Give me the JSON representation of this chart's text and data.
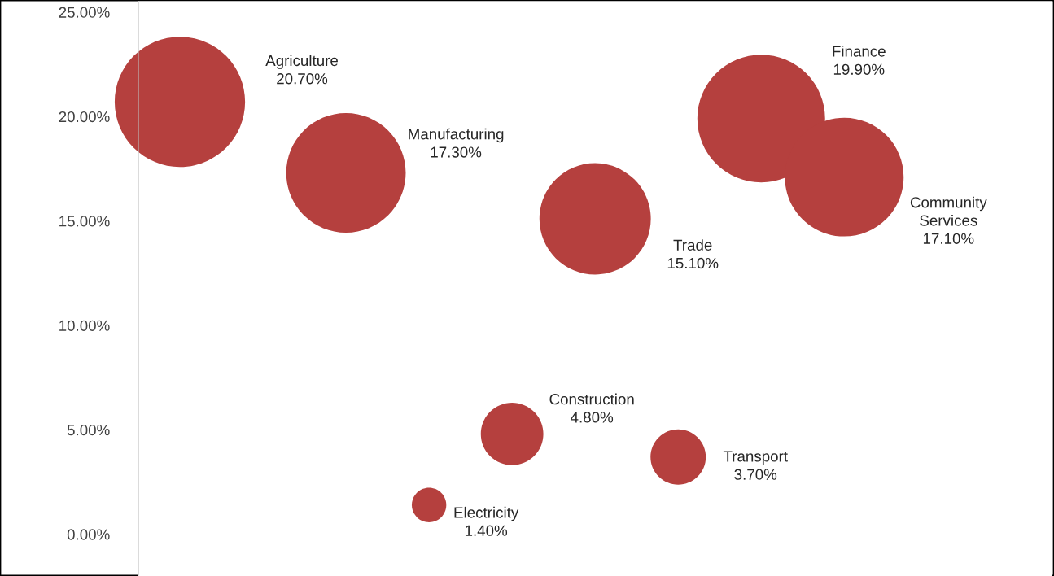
{
  "chart_data": {
    "type": "bubble",
    "categories": [
      null,
      null,
      null,
      null,
      null,
      null,
      null,
      null,
      null,
      null,
      null
    ],
    "values": [
      20.7,
      null,
      17.3,
      1.4,
      4.8,
      15.1,
      3.7,
      19.9,
      17.1,
      null,
      null
    ],
    "sizes": [
      1,
      null,
      0.84,
      0.07,
      0.23,
      0.73,
      0.18,
      0.96,
      0.83,
      null,
      null
    ],
    "color": "#b5403e",
    "value_labels": [
      "Agriculture\n20.70%",
      null,
      "Manufacturing\n17.30%",
      "Electricity\n1.40%",
      "Construction\n4.80%",
      "Trade\n15.10%",
      "Transport\n3.70%",
      "Finance\n19.90%",
      "Community\nServices\n17.10%",
      null,
      null
    ],
    "ylim": [
      -2,
      25.5
    ],
    "yticks": [
      {
        "value": 0,
        "label": "0.00%"
      },
      {
        "value": 5,
        "label": "5.00%"
      },
      {
        "value": 10,
        "label": "10.00%"
      },
      {
        "value": 15,
        "label": "15.00%"
      },
      {
        "value": 20,
        "label": "20.00%"
      },
      {
        "value": 25,
        "label": "25.00%"
      }
    ],
    "tick_labels": "y"
  }
}
